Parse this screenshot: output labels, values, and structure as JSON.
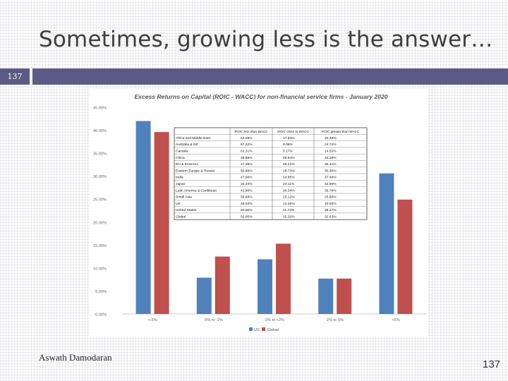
{
  "slide": {
    "title": "Sometimes, growing less is the answer…",
    "slide_number_badge": "137",
    "author": "Aswath Damodaran",
    "page_number": "137"
  },
  "colors": {
    "bar_us": "#4f81bd",
    "bar_global": "#c0504d",
    "title_bar": "#5b5b85"
  },
  "chart_data": {
    "type": "bar",
    "title": "Excess Returns on Capital (ROIC - WACC) for non-financial service firms - January 2020",
    "categories": [
      "<-5%",
      "-5% to -2%",
      "-2% to +2%",
      "2% to 5%",
      ">5%"
    ],
    "series": [
      {
        "name": "US",
        "values": [
          42.0,
          7.9,
          11.9,
          7.7,
          30.6
        ]
      },
      {
        "name": "Global",
        "values": [
          39.6,
          12.5,
          15.3,
          7.7,
          24.9
        ]
      }
    ],
    "ylim": [
      0,
      45
    ],
    "yticks": [
      "0.00%",
      "5.00%",
      "10.00%",
      "15.00%",
      "20.00%",
      "25.00%",
      "30.00%",
      "35.00%",
      "40.00%",
      "45.00%"
    ],
    "legend_position": "bottom",
    "grid": false,
    "table": {
      "headers": [
        "",
        "ROIC less than WACC",
        "ROIC close to WACC",
        "ROIC greater than WACC"
      ],
      "rows": [
        [
          "Africa and Middle East",
          "53.68%",
          "17.83%",
          "30.49%"
        ],
        [
          "Australia & NZ",
          "67.22%",
          "8.06%",
          "24.72%"
        ],
        [
          "Canada",
          "81.31%",
          "6.17%",
          "14.52%"
        ],
        [
          "China",
          "48.88%",
          "26.94%",
          "34.38%"
        ],
        [
          "EU & Environs",
          "47.38%",
          "26.21%",
          "36.41%"
        ],
        [
          "Eastern Europe & Russia",
          "50.96%",
          "18.73%",
          "30.30%"
        ],
        [
          "India",
          "47.66%",
          "14.85%",
          "37.49%"
        ],
        [
          "Japan",
          "34.24%",
          "23.11%",
          "42.65%"
        ],
        [
          "Latin America & Caribbean",
          "43.90%",
          "20.34%",
          "35.76%"
        ],
        [
          "Small Asia",
          "58.68%",
          "15.12%",
          "25.80%"
        ],
        [
          "UK",
          "46.54%",
          "13.46%",
          "40.00%"
        ],
        [
          "United States",
          "50.00%",
          "11.73%",
          "38.27%"
        ],
        [
          "Global",
          "52.05%",
          "15.32%",
          "32.63%"
        ]
      ]
    }
  }
}
